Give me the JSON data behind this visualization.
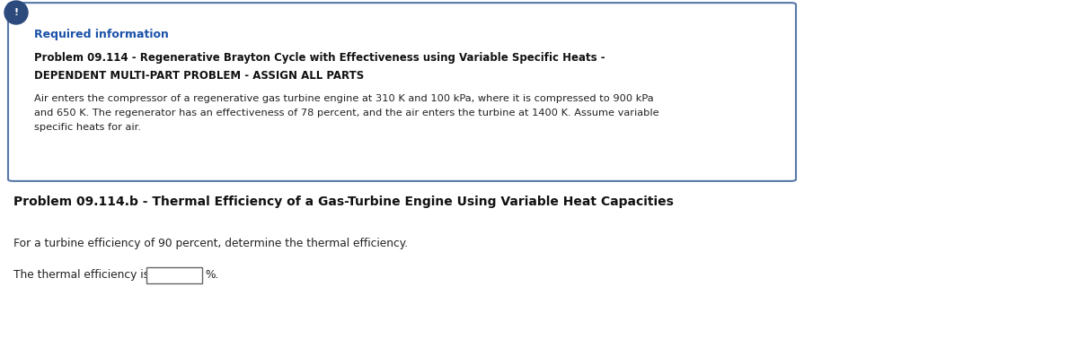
{
  "required_info_label": "Required information",
  "bold_title_line1": "Problem 09.114 - Regenerative Brayton Cycle with Effectiveness using Variable Specific Heats -",
  "bold_title_line2": "DEPENDENT MULTI-PART PROBLEM - ASSIGN ALL PARTS",
  "body_line1": "Air enters the compressor of a regenerative gas turbine engine at 310 K and 100 kPa, where it is compressed to 900 kPa",
  "body_line2": "and 650 K. The regenerator has an effectiveness of 78 percent, and the air enters the turbine at 1400 K. Assume variable",
  "body_line3": "specific heats for air.",
  "section_title": "Problem 09.114.b - Thermal Efficiency of a Gas-Turbine Engine Using Variable Heat Capacities",
  "question_text": "For a turbine efficiency of 90 percent, determine the thermal efficiency.",
  "answer_prefix": "The thermal efficiency is",
  "answer_suffix": "%.",
  "box_edge_color": "#5878a8",
  "required_info_color": "#1a52a8",
  "background_color": "#ffffff",
  "icon_bg_color": "#2c4a7c",
  "icon_text_color": "#ffffff",
  "text_color": "#222222",
  "bold_text_color": "#111111"
}
